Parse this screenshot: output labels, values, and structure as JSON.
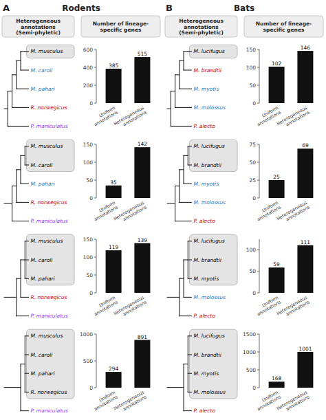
{
  "chart_data": [
    {
      "type": "bar",
      "title": "Rodents",
      "panel_label": "A",
      "column_headers": [
        "Heterogeneous\nannotations\n(Semi-phyletic)",
        "Number of lineage-\nspecific genes"
      ],
      "categories": [
        "Uniform\nannotations",
        "Heterogeneous\nannotations"
      ],
      "values": [
        385,
        515
      ],
      "color": "#111111",
      "ylim": [
        0,
        600
      ],
      "yticks": [
        0,
        200,
        400,
        600
      ],
      "data_labels": true,
      "annotations": [
        {
          "text": "M. musculus",
          "color": "black"
        },
        {
          "text": "M. caroli",
          "color": "#1a7abf"
        },
        {
          "text": "M. pahari",
          "color": "#1a7abf"
        },
        {
          "text": "R. norwegicus",
          "color": "#cc0000"
        },
        {
          "text": "P. maniculatus",
          "color": "#9b30ff"
        }
      ],
      "ingroup_size": 1
    },
    {
      "type": "bar",
      "categories": [
        "Uniform\nannotations",
        "Heterogeneous\nannotations"
      ],
      "values": [
        35,
        142
      ],
      "color": "#111111",
      "ylim": [
        0,
        150
      ],
      "yticks": [
        0,
        50,
        100,
        150
      ],
      "data_labels": true,
      "annotations": [
        {
          "text": "M. musculus",
          "color": "black"
        },
        {
          "text": "M. caroli",
          "color": "black"
        },
        {
          "text": "M. pahari",
          "color": "#1a7abf"
        },
        {
          "text": "R. norwegicus",
          "color": "#cc0000"
        },
        {
          "text": "P. maniculatus",
          "color": "#9b30ff"
        }
      ],
      "ingroup_size": 2
    },
    {
      "type": "bar",
      "categories": [
        "Uniform\nannotations",
        "Heterogeneous\nannotations"
      ],
      "values": [
        119,
        139
      ],
      "color": "#111111",
      "ylim": [
        0,
        150
      ],
      "yticks": [
        0,
        50,
        100,
        150
      ],
      "data_labels": true,
      "annotations": [
        {
          "text": "M. musculus",
          "color": "black"
        },
        {
          "text": "M. caroli",
          "color": "black"
        },
        {
          "text": "M. pahari",
          "color": "black"
        },
        {
          "text": "R. norwegicus",
          "color": "#cc0000"
        },
        {
          "text": "P. maniculatus",
          "color": "#9b30ff"
        }
      ],
      "ingroup_size": 3
    },
    {
      "type": "bar",
      "categories": [
        "Uniform\nannotations",
        "Heterogeneous\nannotations"
      ],
      "values": [
        294,
        891
      ],
      "color": "#111111",
      "ylim": [
        0,
        1000
      ],
      "yticks": [
        0,
        500,
        1000
      ],
      "data_labels": true,
      "annotations": [
        {
          "text": "M. musculus",
          "color": "black"
        },
        {
          "text": "M. caroli",
          "color": "black"
        },
        {
          "text": "M. pahari",
          "color": "black"
        },
        {
          "text": "R. norwegicus",
          "color": "black"
        },
        {
          "text": "P. maniculatus",
          "color": "#9b30ff"
        }
      ],
      "ingroup_size": 4
    },
    {
      "type": "bar",
      "title": "Bats",
      "panel_label": "B",
      "column_headers": [
        "Heterogeneous\nannotations\n(Semi-phyletic)",
        "Number of lineage-\nspecific genes"
      ],
      "categories": [
        "Uniform\nannotations",
        "Heterogeneous\nannotations"
      ],
      "values": [
        102,
        146
      ],
      "color": "#111111",
      "ylim": [
        0,
        150
      ],
      "yticks": [
        0,
        50,
        100,
        150
      ],
      "data_labels": true,
      "annotations": [
        {
          "text": "M. lucifugus",
          "color": "black"
        },
        {
          "text": "M. brandtii",
          "color": "#cc0000"
        },
        {
          "text": "M. myotis",
          "color": "#1a7abf"
        },
        {
          "text": "M. molossus",
          "color": "#1a7abf"
        },
        {
          "text": "P. alecto",
          "color": "#cc0000"
        }
      ],
      "ingroup_size": 1
    },
    {
      "type": "bar",
      "categories": [
        "Uniform\nannotations",
        "Heterogeneous\nannotations"
      ],
      "values": [
        25,
        69
      ],
      "color": "#111111",
      "ylim": [
        0,
        75
      ],
      "yticks": [
        0,
        25,
        50,
        75
      ],
      "data_labels": true,
      "annotations": [
        {
          "text": "M. lucifugus",
          "color": "black"
        },
        {
          "text": "M. brandtii",
          "color": "black"
        },
        {
          "text": "M. myotis",
          "color": "#1a7abf"
        },
        {
          "text": "M. molossus",
          "color": "#1a7abf"
        },
        {
          "text": "P. alecto",
          "color": "#cc0000"
        }
      ],
      "ingroup_size": 2
    },
    {
      "type": "bar",
      "categories": [
        "Uniform\nannotations",
        "Heterogeneous\nannotations"
      ],
      "values": [
        59,
        111
      ],
      "color": "#111111",
      "ylim": [
        0,
        125
      ],
      "yticks": [
        0,
        50,
        100
      ],
      "data_labels": true,
      "annotations": [
        {
          "text": "M. lucifugus",
          "color": "black"
        },
        {
          "text": "M. brandtii",
          "color": "black"
        },
        {
          "text": "M. myotis",
          "color": "black"
        },
        {
          "text": "M. molossus",
          "color": "#1a7abf"
        },
        {
          "text": "P. alecto",
          "color": "#cc0000"
        }
      ],
      "ingroup_size": 3
    },
    {
      "type": "bar",
      "categories": [
        "Uniform\nannotations",
        "Heterogeneous\nannotations"
      ],
      "values": [
        168,
        1001
      ],
      "color": "#111111",
      "ylim": [
        0,
        1500
      ],
      "yticks": [
        0,
        500,
        1000,
        1500
      ],
      "data_labels": true,
      "annotations": [
        {
          "text": "M. lucifugus",
          "color": "black"
        },
        {
          "text": "M. brandtii",
          "color": "black"
        },
        {
          "text": "M. myotis",
          "color": "black"
        },
        {
          "text": "M. molossus",
          "color": "black"
        },
        {
          "text": "P. alecto",
          "color": "#cc0000"
        }
      ],
      "ingroup_size": 4
    }
  ]
}
